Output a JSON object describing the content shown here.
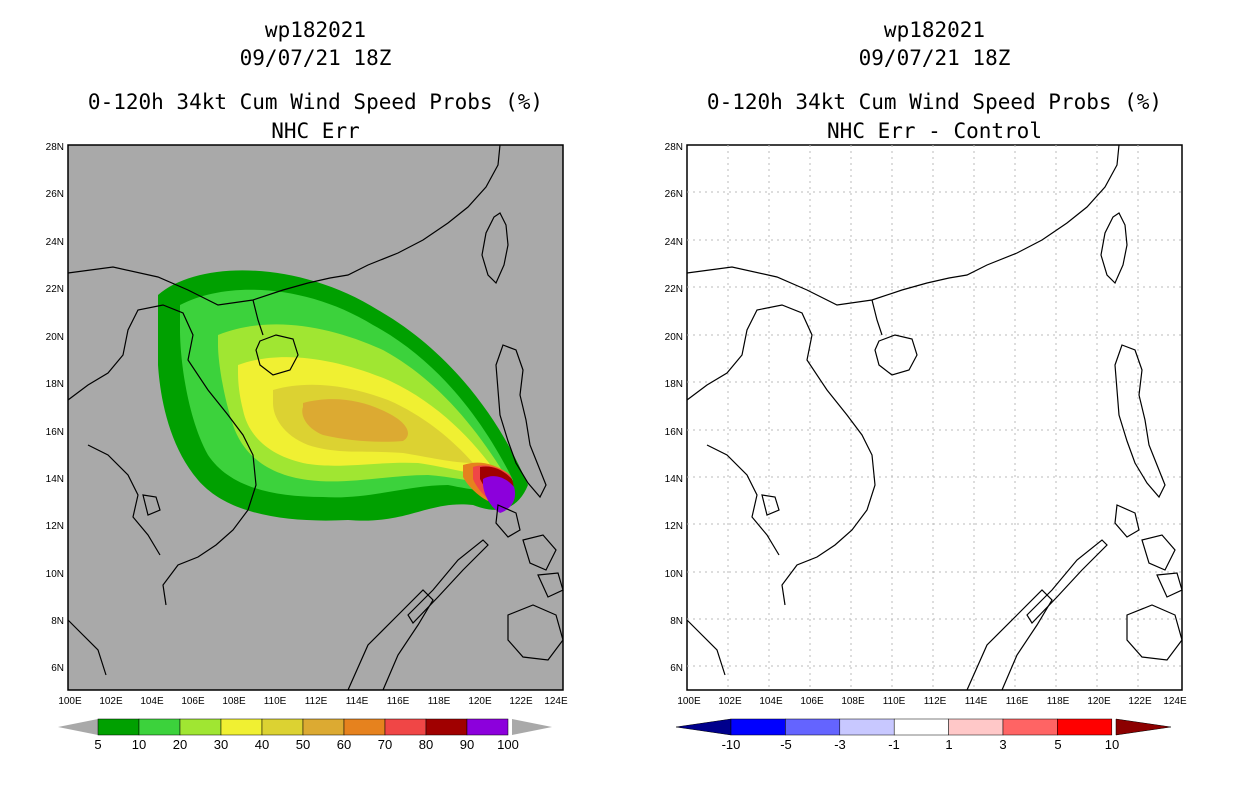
{
  "left": {
    "title_line1": "wp182021",
    "title_line2": "09/07/21 18Z",
    "title_line3": "0-120h 34kt Cum Wind Speed Probs (%)",
    "title_line4": "NHC Err",
    "lat_labels": [
      "28N",
      "26N",
      "24N",
      "22N",
      "20N",
      "18N",
      "16N",
      "14N",
      "12N",
      "10N",
      "8N",
      "6N"
    ],
    "lon_labels": [
      "100E",
      "102E",
      "104E",
      "106E",
      "108E",
      "110E",
      "112E",
      "114E",
      "116E",
      "118E",
      "120E",
      "122E",
      "124E"
    ],
    "colorbar": {
      "colors": [
        "#00a000",
        "#3cd23c",
        "#a0e632",
        "#f0f032",
        "#dcd232",
        "#dcaa32",
        "#e6821e",
        "#f04646",
        "#a00000",
        "#8c00dc"
      ],
      "labels": [
        "5",
        "10",
        "20",
        "30",
        "40",
        "50",
        "60",
        "70",
        "80",
        "90",
        "100"
      ],
      "background": "#a9a9a9"
    }
  },
  "right": {
    "title_line1": "wp182021",
    "title_line2": "09/07/21 18Z",
    "title_line3": "0-120h 34kt Cum Wind Speed Probs (%)",
    "title_line4": "NHC Err - Control",
    "lat_labels": [
      "28N",
      "26N",
      "24N",
      "22N",
      "20N",
      "18N",
      "16N",
      "14N",
      "12N",
      "10N",
      "8N",
      "6N"
    ],
    "lon_labels": [
      "100E",
      "102E",
      "104E",
      "106E",
      "108E",
      "110E",
      "112E",
      "114E",
      "116E",
      "118E",
      "120E",
      "122E",
      "124E"
    ],
    "colorbar": {
      "colors": [
        "#0000b4",
        "#0000ff",
        "#6464ff",
        "#c8c8ff",
        "#ffffff",
        "#ffc8c8",
        "#ff6464",
        "#ff0000",
        "#8c0000"
      ],
      "labels": [
        "-10",
        "-5",
        "-3",
        "-1",
        "1",
        "3",
        "5",
        "10"
      ]
    }
  }
}
